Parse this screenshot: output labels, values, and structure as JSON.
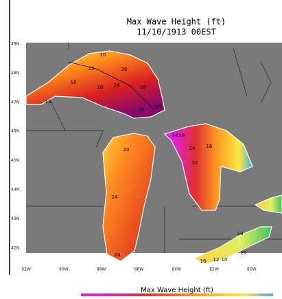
{
  "title": "Max Wave Height (ft)",
  "subtitle": "11/10/1913 00EST",
  "lat_labels": [
    "49N",
    "48N",
    "47N",
    "46N",
    "45N",
    "44N",
    "43N",
    "42N"
  ],
  "lon_labels": [
    "92W",
    "90W",
    "88W",
    "86W",
    "84W",
    "82W",
    "80W"
  ],
  "contour_labels": [
    10,
    12,
    20,
    16,
    24,
    20,
    16,
    12,
    16,
    20,
    20,
    24,
    24,
    14,
    16,
    24,
    32,
    16,
    16,
    20,
    16,
    12,
    10
  ],
  "colorbar_label": "Max Wave Height (ft)"
}
